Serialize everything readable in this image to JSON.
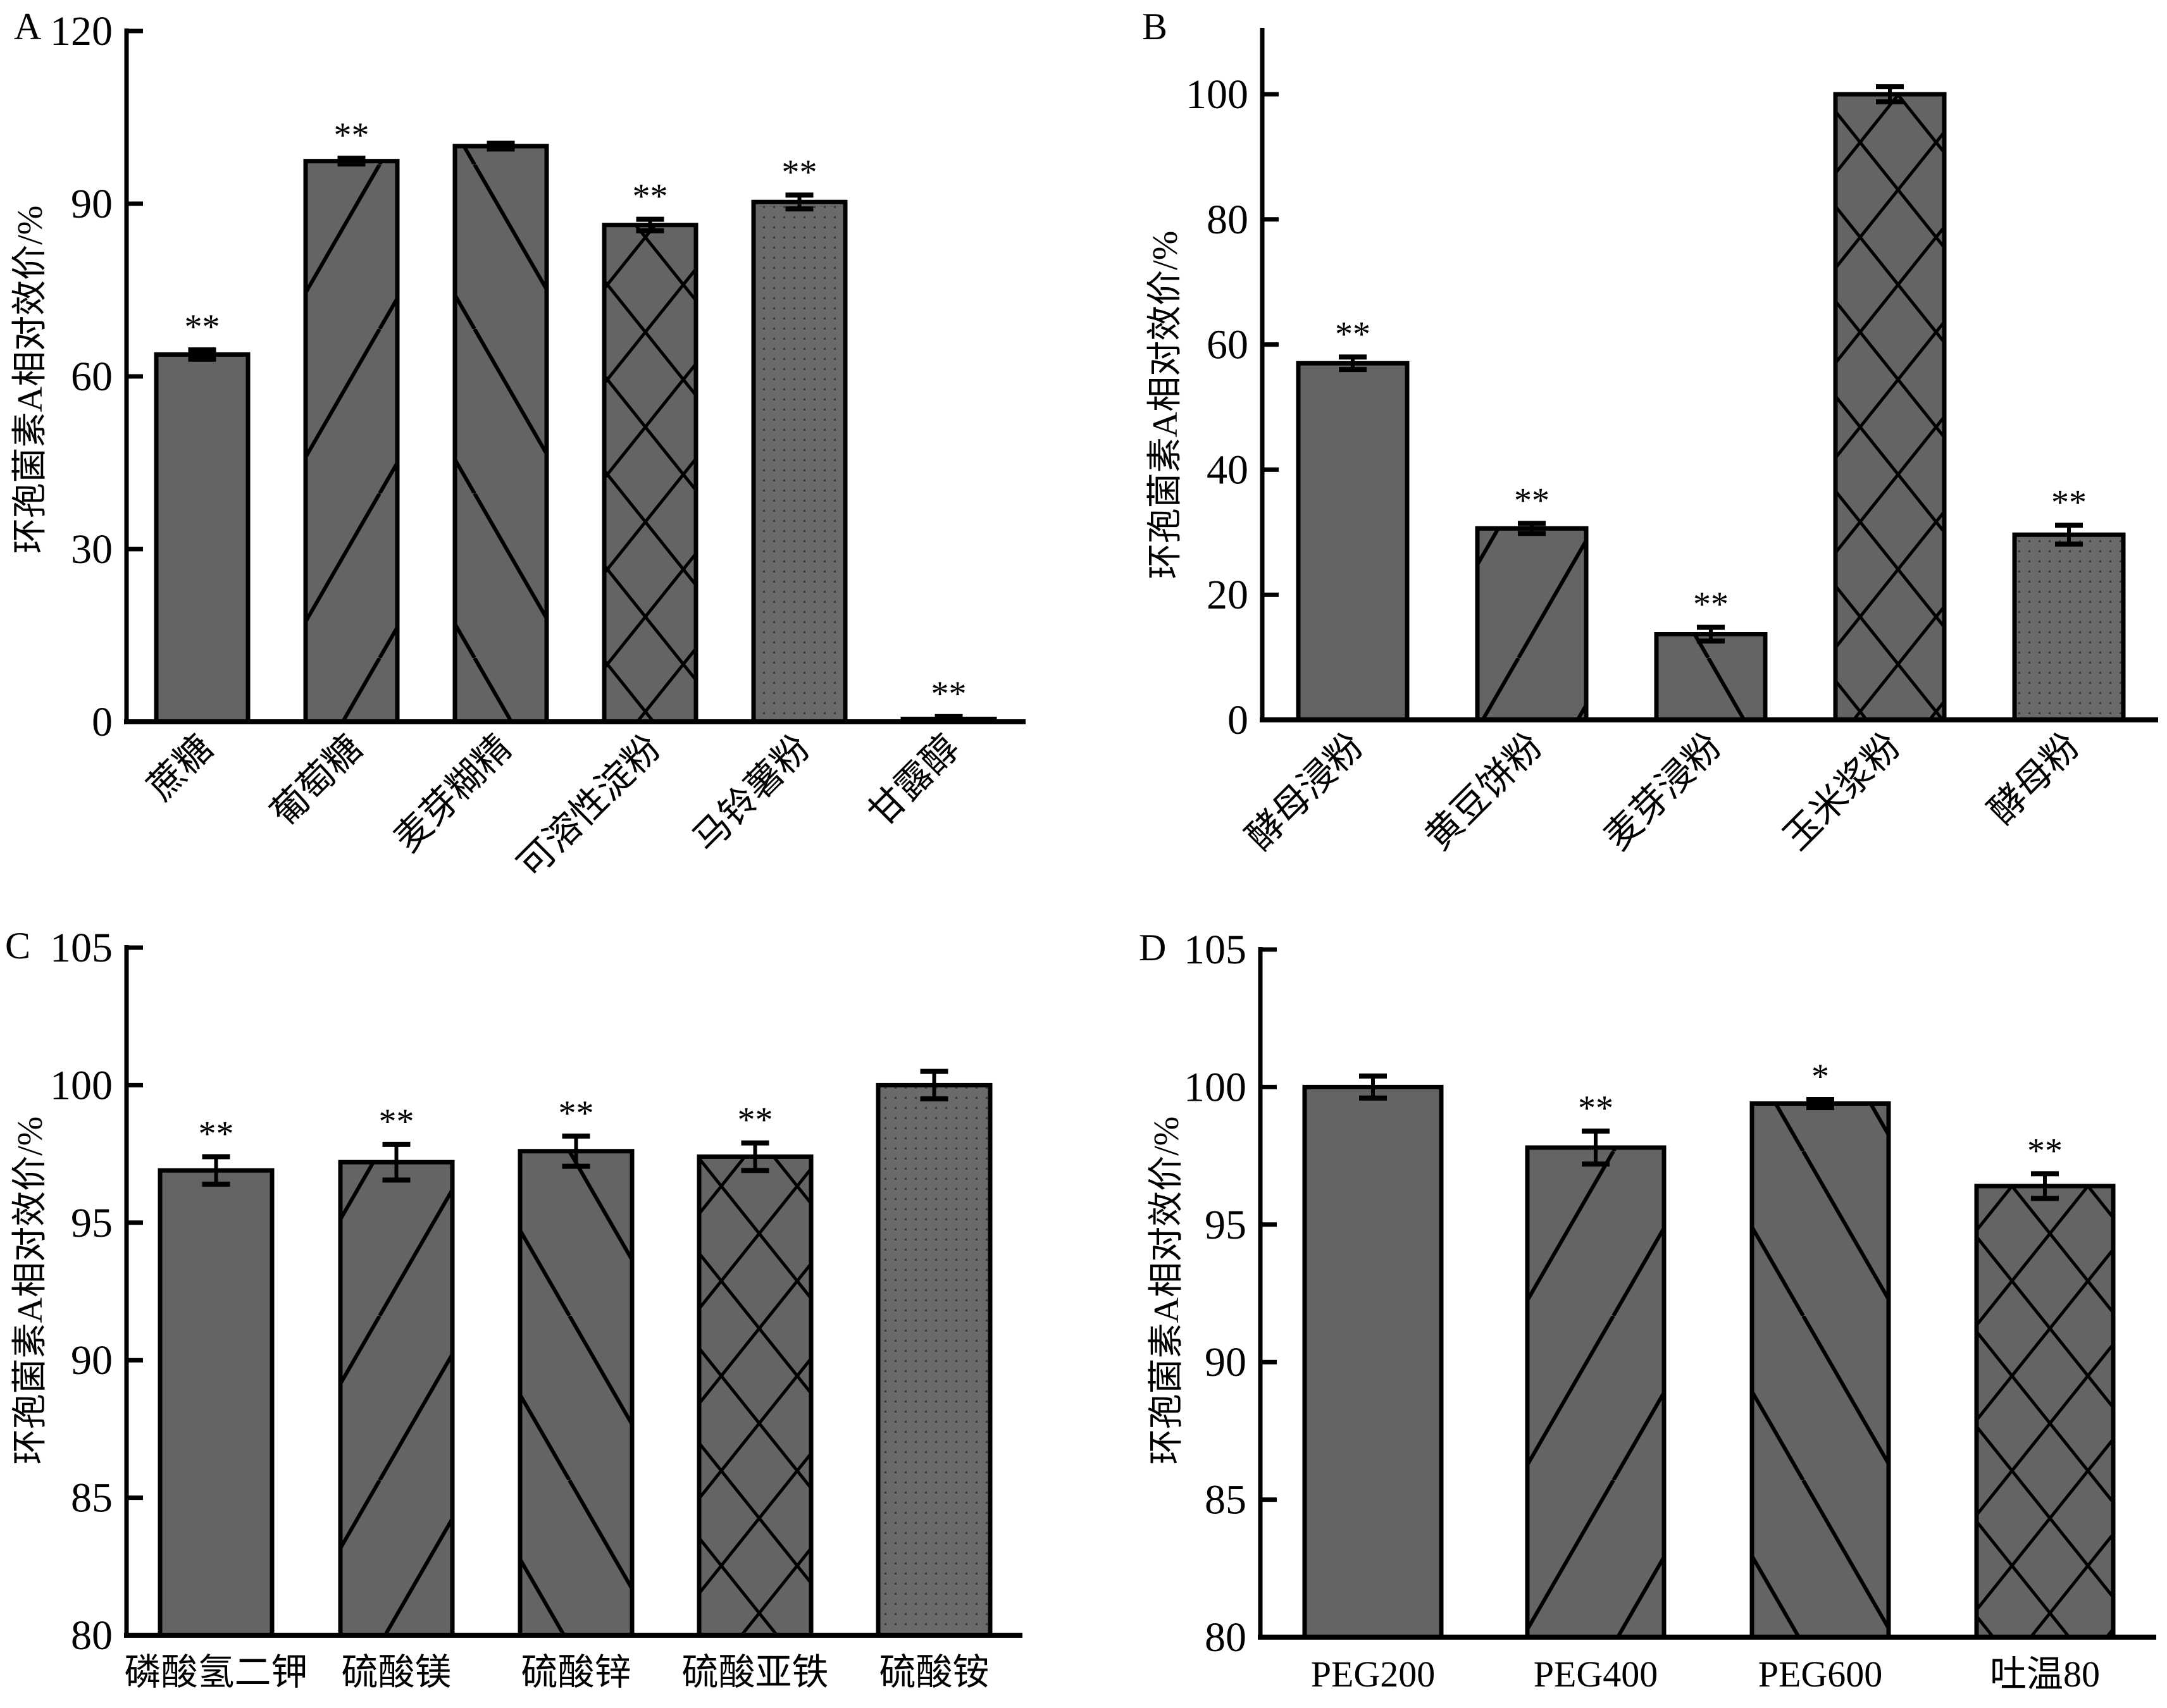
{
  "figure": {
    "ylabel": "环孢菌素A相对效价/%",
    "colors": {
      "bar_fill": "#646464",
      "stroke": "#000000",
      "background": "#ffffff"
    }
  },
  "chart_data": [
    {
      "panel": "A",
      "type": "bar",
      "title": "",
      "xlabel": "",
      "ylabel": "环孢菌素A相对效价/%",
      "ylim": [
        0,
        120
      ],
      "yticks": [
        0,
        30,
        60,
        90,
        120
      ],
      "ytick_labels": [
        "0",
        "30",
        "60",
        "90",
        "120"
      ],
      "xtick_rotation": "45-degree",
      "grid": false,
      "categories": [
        "蔗糖",
        "葡萄糖",
        "麦芽糊精",
        "可溶性淀粉",
        "马铃薯粉",
        "甘露醇"
      ],
      "values": [
        63.8,
        97.4,
        100,
        86.3,
        90.3,
        0.5
      ],
      "errors": [
        0.8,
        0.5,
        0.5,
        1.0,
        1.2,
        0.4
      ],
      "significance": [
        "**",
        "**",
        "",
        "**",
        "**",
        "**"
      ],
      "patterns": [
        "solid",
        "forward-diagonal",
        "back-diagonal",
        "crosshatch",
        "dots",
        "solid"
      ]
    },
    {
      "panel": "B",
      "type": "bar",
      "title": "",
      "xlabel": "",
      "ylabel": "环孢菌素A相对效价/%",
      "ylim": [
        0,
        110
      ],
      "yticks": [
        0,
        20,
        40,
        60,
        80,
        100
      ],
      "ytick_labels": [
        "0",
        "20",
        "40",
        "60",
        "80",
        "100"
      ],
      "xtick_rotation": "45-degree",
      "grid": false,
      "categories": [
        "酵母浸粉",
        "黄豆饼粉",
        "麦芽浸粉",
        "玉米浆粉",
        "酵母粉"
      ],
      "values": [
        57.0,
        30.6,
        13.7,
        100,
        29.6
      ],
      "errors": [
        1.0,
        0.8,
        1.1,
        1.2,
        1.5
      ],
      "significance": [
        "**",
        "**",
        "**",
        "",
        "**"
      ],
      "patterns": [
        "solid",
        "forward-diagonal",
        "back-diagonal",
        "crosshatch",
        "dots"
      ]
    },
    {
      "panel": "C",
      "type": "bar",
      "title": "",
      "xlabel": "",
      "ylabel": "环孢菌素A相对效价/%",
      "ylim": [
        80,
        105
      ],
      "yticks": [
        80,
        85,
        90,
        95,
        100,
        105
      ],
      "ytick_labels": [
        "80",
        "85",
        "90",
        "95",
        "100",
        "105"
      ],
      "xtick_rotation": "horizontal",
      "grid": false,
      "categories": [
        "磷酸氢二钾",
        "硫酸镁",
        "硫酸锌",
        "硫酸亚铁",
        "硫酸铵"
      ],
      "values": [
        96.9,
        97.2,
        97.6,
        97.4,
        100
      ],
      "errors": [
        0.5,
        0.65,
        0.55,
        0.5,
        0.5
      ],
      "significance": [
        "**",
        "**",
        "**",
        "**",
        ""
      ],
      "patterns": [
        "solid",
        "forward-diagonal",
        "back-diagonal",
        "crosshatch",
        "dots"
      ]
    },
    {
      "panel": "D",
      "type": "bar",
      "title": "",
      "xlabel": "",
      "ylabel": "环孢菌素A相对效价/%",
      "ylim": [
        80,
        105
      ],
      "yticks": [
        80,
        85,
        90,
        95,
        100,
        105
      ],
      "ytick_labels": [
        "80",
        "85",
        "90",
        "95",
        "100",
        "105"
      ],
      "xtick_rotation": "horizontal",
      "grid": false,
      "categories": [
        "PEG200",
        "PEG400",
        "PEG600",
        "吐温80"
      ],
      "values": [
        100,
        97.8,
        99.4,
        96.4
      ],
      "errors": [
        0.4,
        0.6,
        0.15,
        0.45
      ],
      "significance": [
        "",
        "**",
        "*",
        "**"
      ],
      "patterns": [
        "solid",
        "forward-diagonal",
        "back-diagonal",
        "crosshatch"
      ]
    }
  ]
}
